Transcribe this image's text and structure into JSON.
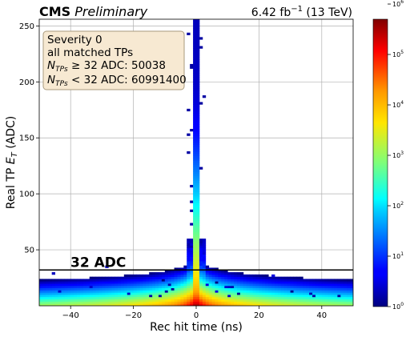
{
  "header": {
    "experiment": "CMS",
    "status": "Preliminary",
    "lumi_value": "6.42 fb",
    "lumi_exp": "−1",
    "energy": " (13 TeV)"
  },
  "legend": {
    "line1": "Severity 0",
    "line2": "all matched TPs",
    "line3_sym": "N",
    "line3_sub": "TPs",
    "line3_rest": " ≥ 32 ADC: 50038",
    "line4_sym": "N",
    "line4_sub": "TPs",
    "line4_rest": " < 32 ADC: 60991400"
  },
  "threshold": {
    "label": "32 ADC",
    "value": 32
  },
  "colors": {
    "threshold_line": "#000000",
    "legend_bg": "#f7e9d2",
    "legend_border": "#a99a7d",
    "grid": "#b0b0b0"
  },
  "chart_data": {
    "type": "heatmap",
    "title": "",
    "xlabel": "Rec hit time (ns)",
    "ylabel_parts": [
      "Real TP ",
      "E",
      "T",
      " (ADC)"
    ],
    "xlim": [
      -50,
      50
    ],
    "ylim": [
      0,
      256
    ],
    "xticks": [
      -40,
      -20,
      0,
      20,
      40
    ],
    "yticks": [
      50,
      100,
      150,
      200,
      250
    ],
    "grid": true,
    "colorbar": {
      "scale": "log",
      "range": [
        1,
        500000
      ],
      "ticks": [
        {
          "value": 1,
          "base": "10",
          "exp": "0"
        },
        {
          "value": 10,
          "base": "10",
          "exp": "1"
        },
        {
          "value": 100,
          "base": "10",
          "exp": "2"
        },
        {
          "value": 1000,
          "base": "10",
          "exp": "3"
        },
        {
          "value": 10000,
          "base": "10",
          "exp": "4"
        },
        {
          "value": 100000,
          "base": "10",
          "exp": "5"
        },
        {
          "value": 1000000,
          "base": "10",
          "exp": "6"
        }
      ]
    },
    "bin_size": {
      "x": 1,
      "y": 2
    },
    "counts": {
      "above_threshold": 50038,
      "below_threshold": 60991400
    },
    "peak": {
      "x": 0,
      "y_max": 256
    }
  }
}
